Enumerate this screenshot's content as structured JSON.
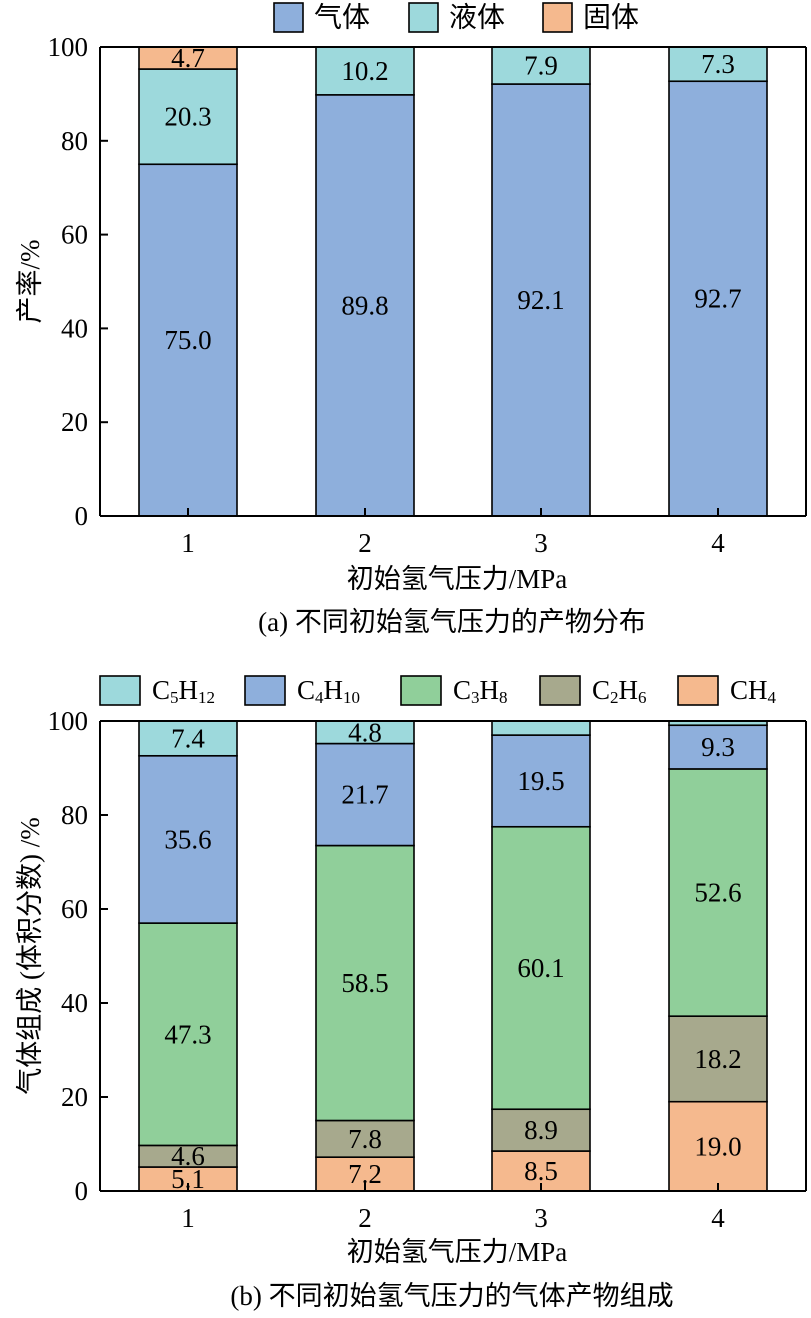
{
  "chart_data": [
    {
      "type": "bar",
      "stacked": true,
      "caption": "(a) 不同初始氢气压力的产物分布",
      "xlabel": "初始氢气压力/MPa",
      "ylabel": "产率/%",
      "ylim": [
        0,
        100
      ],
      "yticks": [
        "0",
        "20",
        "40",
        "60",
        "80",
        "100"
      ],
      "categories": [
        "1",
        "2",
        "3",
        "4"
      ],
      "legend_position": "top",
      "series": [
        {
          "name": "气体",
          "color": "#8eafdc",
          "values": [
            75.0,
            89.8,
            92.1,
            92.7
          ],
          "labels": [
            "75.0",
            "89.8",
            "92.1",
            "92.7"
          ]
        },
        {
          "name": "液体",
          "color": "#9dd9dc",
          "values": [
            20.3,
            10.2,
            7.9,
            7.3
          ],
          "labels": [
            "20.3",
            "10.2",
            "7.9",
            "7.3"
          ]
        },
        {
          "name": "固体",
          "color": "#f5b98e",
          "values": [
            4.7,
            0,
            0,
            0
          ],
          "labels": [
            "4.7",
            "",
            "",
            ""
          ]
        }
      ]
    },
    {
      "type": "bar",
      "stacked": true,
      "caption": "(b) 不同初始氢气压力的气体产物组成",
      "xlabel": "初始氢气压力/MPa",
      "ylabel": "气体组成 (体积分数) /%",
      "ylim": [
        0,
        100
      ],
      "yticks": [
        "0",
        "20",
        "40",
        "60",
        "80",
        "100"
      ],
      "categories": [
        "1",
        "2",
        "3",
        "4"
      ],
      "legend_position": "top",
      "legend_order": [
        "C5H12",
        "C4H10",
        "C3H8",
        "C2H6",
        "CH4"
      ],
      "series": [
        {
          "name": "CH4",
          "legend": {
            "base": "CH",
            "sub": "4",
            "tail": "",
            "tailsub": ""
          },
          "color": "#f5b98e",
          "values": [
            5.1,
            7.2,
            8.5,
            19.0
          ],
          "labels": [
            "5.1",
            "7.2",
            "8.5",
            "19.0"
          ]
        },
        {
          "name": "C2H6",
          "legend": {
            "base": "C",
            "sub": "2",
            "tail": "H",
            "tailsub": "6"
          },
          "color": "#a7a98d",
          "values": [
            4.6,
            7.8,
            8.9,
            18.2
          ],
          "labels": [
            "4.6",
            "7.8",
            "8.9",
            "18.2"
          ]
        },
        {
          "name": "C3H8",
          "legend": {
            "base": "C",
            "sub": "3",
            "tail": "H",
            "tailsub": "8"
          },
          "color": "#90cf9a",
          "values": [
            47.3,
            58.5,
            60.1,
            52.6
          ],
          "labels": [
            "47.3",
            "58.5",
            "60.1",
            "52.6"
          ]
        },
        {
          "name": "C4H10",
          "legend": {
            "base": "C",
            "sub": "4",
            "tail": "H",
            "tailsub": "10"
          },
          "color": "#8eafdc",
          "values": [
            35.6,
            21.7,
            19.5,
            9.3
          ],
          "labels": [
            "35.6",
            "21.7",
            "19.5",
            "9.3"
          ]
        },
        {
          "name": "C5H12",
          "legend": {
            "base": "C",
            "sub": "5",
            "tail": "H",
            "tailsub": "12"
          },
          "color": "#9dd9dc",
          "values": [
            7.4,
            4.8,
            3.0,
            0.9
          ],
          "labels": [
            "7.4",
            "4.8",
            "",
            ""
          ]
        }
      ]
    }
  ]
}
